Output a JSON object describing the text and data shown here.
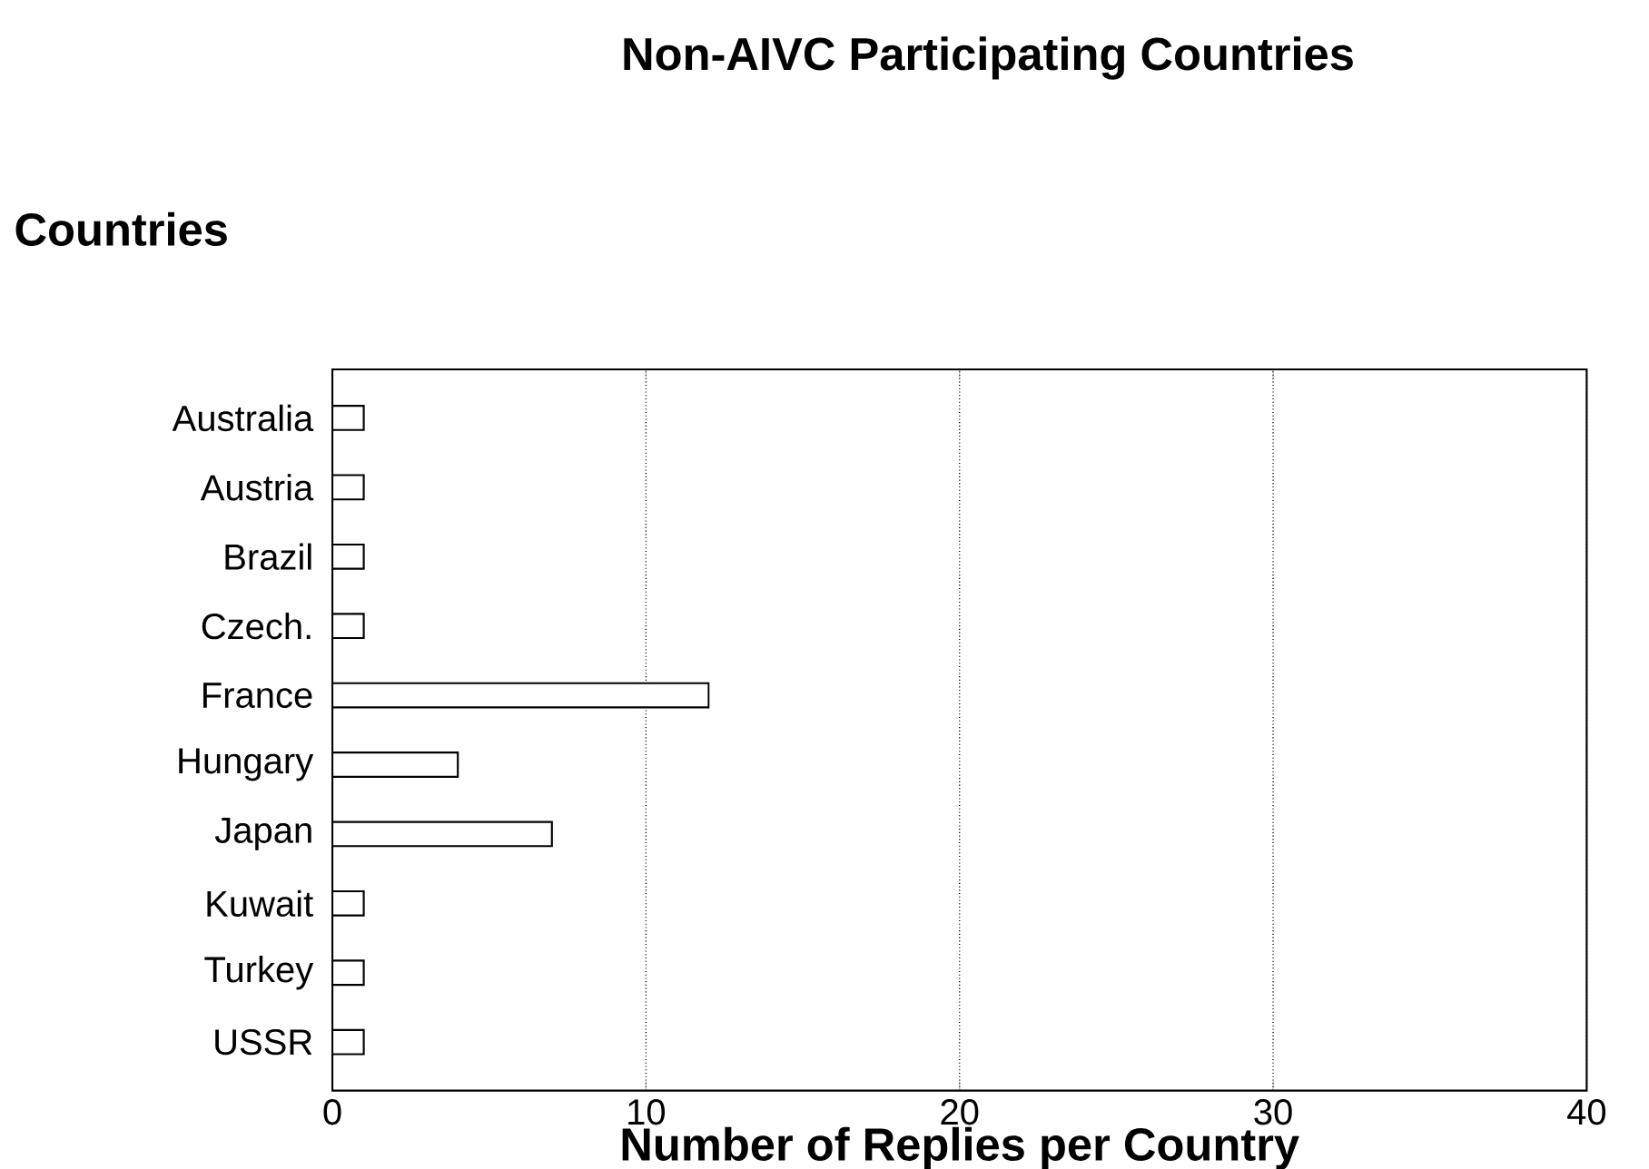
{
  "chart_data": {
    "type": "bar",
    "orientation": "horizontal",
    "title": "Non-AIVC Participating Countries",
    "ylabel": "Countries",
    "xlabel": "Number of Replies per Country",
    "categories": [
      "Australia",
      "Austria",
      "Brazil",
      "Czech.",
      "France",
      "Hungary",
      "Japan",
      "Kuwait",
      "Turkey",
      "USSR"
    ],
    "values": [
      1,
      1,
      1,
      1,
      12,
      4,
      7,
      1,
      1,
      1
    ],
    "color": "#ffffff",
    "xlim": [
      0,
      40
    ],
    "xticks": [
      0,
      10,
      20,
      30,
      40
    ],
    "grid": "x"
  }
}
